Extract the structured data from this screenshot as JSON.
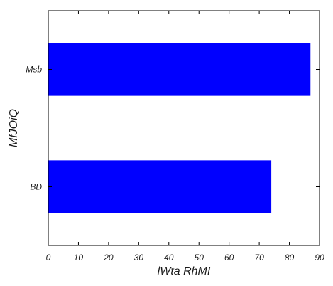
{
  "chart_data": {
    "type": "bar",
    "orientation": "horizontal",
    "categories": [
      "BD",
      "Msb"
    ],
    "values": [
      74,
      87
    ],
    "xlabel": "lWta RhMI",
    "ylabel": "MfJOiQ",
    "xlim": [
      0,
      90
    ],
    "xticks": [
      "0",
      "10",
      "20",
      "30",
      "40",
      "50",
      "60",
      "70",
      "80",
      "90"
    ],
    "grid": false,
    "bar_color": "#0000ff",
    "axis_color": "#000000"
  }
}
